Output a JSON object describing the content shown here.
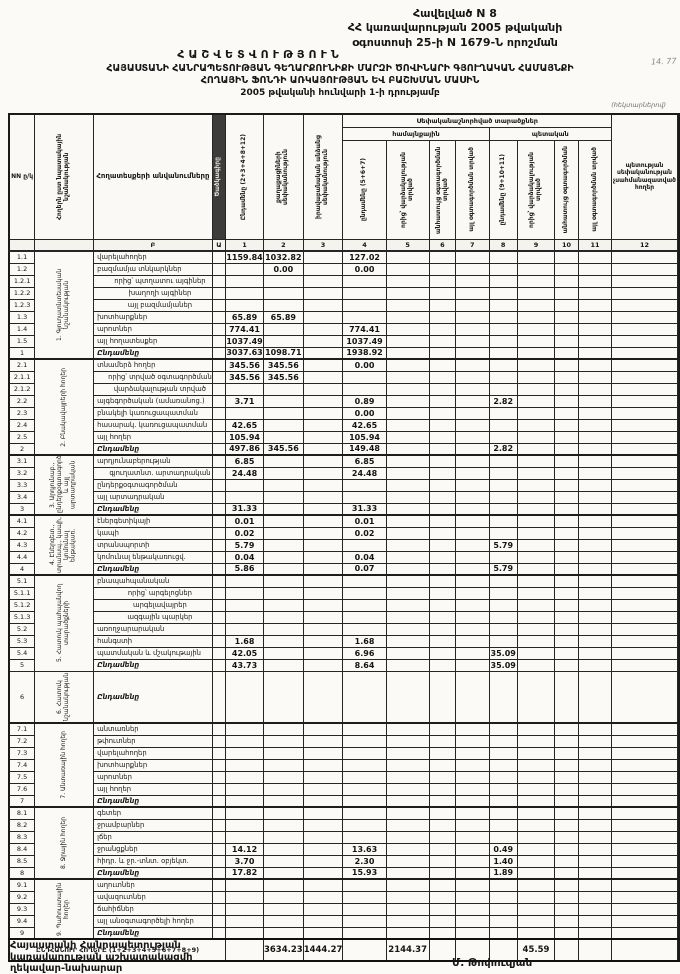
{
  "annex": {
    "line1": "Հավելված N 8",
    "line2": "ՀՀ կառավարության 2005 թվականի",
    "line3": "օգոստոսի 25-ի N 1679-Ն որոշման"
  },
  "title": {
    "heading": "ՀԱՇՎԵՏՎՈՒԹՅՈՒՆ",
    "line1": "ՀԱՅԱՍՏԱՆԻ ՀԱՆՐԱՊԵՏՈՒԹՅԱՆ ԳԵՂԱՐՔՈՒՆԻՔԻ ՄԱՐԶԻ ԾՈՎԻՆԱՐԻ ԳՅՈՒՂԱԿԱՆ ՀԱՄԱՅՆՔԻ",
    "line2": "ՀՈՂԱՅԻՆ ՖՈՆԴԻ ԱՌԿԱՅՈՒԹՅԱՆ ԵՎ ԲԱՇԽՄԱՆ ՄԱՍԻՆ",
    "line3": "2005 թվականի հունվարի 1-ի դրությամբ",
    "units": "(հեկտարներով)",
    "handwriting": "14. 77"
  },
  "table": {
    "header": {
      "nn": "NN ը/կ",
      "category": "Հողերն ըստ նպատակային նշանակության",
      "name": "Հողատեսքերի անվանումները",
      "code": "Ծածկագիրը",
      "col1": "Ընդամենը (2+3+4+8+12)",
      "col2": "քաղաքացիների սեփականություն",
      "col3": "իրավաբանական անձանց սեփականություն",
      "group_top": "Սեփականաշնորհված տարածքներ",
      "group_community": "համայնքային",
      "group_state": "պետական",
      "col4": "ընդամենը (5+6+7)",
      "col5": "որից՝ վարձակալության տրված",
      "col6": "անհատույց օգտագործման տրված",
      "col7": "այլ օգտագործման տրված",
      "col8": "ընդամենը (9+10+11)",
      "col9": "որից՝ վարձակալության տրված",
      "col10": "անհատույց օգտագործման",
      "col11": "այլ օգտագործման տրված",
      "col12": "պետության սեփականության չսահմանազատված հողեր",
      "num_row": [
        "",
        "",
        "Բ",
        "Ա",
        "1",
        "2",
        "3",
        "4",
        "5",
        "6",
        "7",
        "8",
        "9",
        "10",
        "11",
        "12"
      ]
    },
    "sections": [
      {
        "num": "1",
        "title": "Գյուղատնտեսական նշանակության",
        "rows": [
          {
            "no": "1.1",
            "label": "վարելահողեր",
            "v": {
              "1": "1159.84",
              "2": "1032.82",
              "4": "127.02"
            }
          },
          {
            "no": "1.2",
            "label": "բազմամյա տնկարկներ",
            "v": {
              "2": "0.00",
              "4": "0.00"
            }
          },
          {
            "no": "1.2.1",
            "label": "որից՝ պտղատու այգիներ",
            "indent": true,
            "v": {}
          },
          {
            "no": "1.2.2",
            "label": "խաղողի այգիներ",
            "indent": true,
            "v": {}
          },
          {
            "no": "1.2.3",
            "label": "այլ բազմամյաներ",
            "indent": true,
            "v": {}
          },
          {
            "no": "1.3",
            "label": "խոտհարքներ",
            "v": {
              "1": "65.89",
              "2": "65.89"
            }
          },
          {
            "no": "1.4",
            "label": "արոտներ",
            "v": {
              "1": "774.41",
              "4": "774.41"
            }
          },
          {
            "no": "1.5",
            "label": "այլ հողատեսքեր",
            "v": {
              "1": "1037.49",
              "4": "1037.49"
            }
          },
          {
            "no": "1",
            "label": "Ընդամենը",
            "total": true,
            "v": {
              "1": "3037.63",
              "2": "1098.71",
              "4": "1938.92"
            }
          }
        ]
      },
      {
        "num": "2",
        "title": "Բնակավայրերի հողեր",
        "rows": [
          {
            "no": "2.1",
            "label": "տնամերձ հողեր",
            "v": {
              "1": "345.56",
              "2": "345.56",
              "4": "0.00"
            }
          },
          {
            "no": "2.1.1",
            "label": "որից՝ տրված օգտագործման",
            "indent": true,
            "v": {
              "1": "345.56",
              "2": "345.56"
            }
          },
          {
            "no": "2.1.2",
            "label": "վարձակալության տրված",
            "indent": true,
            "v": {}
          },
          {
            "no": "2.2",
            "label": "այգեգործական (ամառանոց.)",
            "v": {
              "1": "3.71",
              "4": "0.89",
              "8": "2.82"
            }
          },
          {
            "no": "2.3",
            "label": "բնակելի կառուցապատման",
            "v": {
              "4": "0.00"
            }
          },
          {
            "no": "2.4",
            "label": "հասարակ. կառուցապատման",
            "v": {
              "1": "42.65",
              "4": "42.65"
            }
          },
          {
            "no": "2.5",
            "label": "այլ հողեր",
            "v": {
              "1": "105.94",
              "4": "105.94"
            }
          },
          {
            "no": "2",
            "label": "Ընդամենը",
            "total": true,
            "v": {
              "1": "497.86",
              "2": "345.56",
              "4": "149.48",
              "8": "2.82"
            }
          }
        ]
      },
      {
        "num": "3",
        "title": "Արդյունաբ., ընդերքօգտագործ. և այլ արտադրական",
        "rows": [
          {
            "no": "3.1",
            "label": "արդյունաբերության",
            "v": {
              "1": "6.85",
              "4": "6.85"
            }
          },
          {
            "no": "3.2",
            "label": "գյուղատնտ. արտադրական",
            "indent": true,
            "v": {
              "1": "24.48",
              "4": "24.48"
            }
          },
          {
            "no": "3.3",
            "label": "ընդերքօգտագործման",
            "v": {}
          },
          {
            "no": "3.4",
            "label": "այլ արտադրական",
            "v": {}
          },
          {
            "no": "3",
            "label": "Ընդամենը",
            "total": true,
            "v": {
              "1": "31.33",
              "4": "31.33"
            }
          }
        ]
      },
      {
        "num": "4",
        "title": "Էներգետ., տրանսպ., կապի, կոմունալ ենթակառ.",
        "rows": [
          {
            "no": "4.1",
            "label": "էներգետիկայի",
            "v": {
              "1": "0.01",
              "4": "0.01"
            }
          },
          {
            "no": "4.2",
            "label": "կապի",
            "v": {
              "1": "0.02",
              "4": "0.02"
            }
          },
          {
            "no": "4.3",
            "label": "տրանսպորտի",
            "v": {
              "1": "5.79",
              "8": "5.79"
            }
          },
          {
            "no": "4.4",
            "label": "կոմունալ ենթակառուցվ.",
            "v": {
              "1": "0.04",
              "4": "0.04"
            }
          },
          {
            "no": "4",
            "label": "Ընդամենը",
            "total": true,
            "v": {
              "1": "5.86",
              "4": "0.07",
              "8": "5.79"
            }
          }
        ]
      },
      {
        "num": "5",
        "title": "Հատուկ պահպանվող տարածքների",
        "rows": [
          {
            "no": "5.1",
            "label": "բնապահպանական",
            "v": {}
          },
          {
            "no": "5.1.1",
            "label": "որից՝ արգելոցներ",
            "indent": true,
            "v": {}
          },
          {
            "no": "5.1.2",
            "label": "արգելավայրեր",
            "indent": true,
            "v": {}
          },
          {
            "no": "5.1.3",
            "label": "ազգային պարկեր",
            "indent": true,
            "v": {}
          },
          {
            "no": "5.2",
            "label": "առողջարարական",
            "v": {}
          },
          {
            "no": "5.3",
            "label": "հանգստի",
            "v": {
              "1": "1.68",
              "4": "1.68"
            }
          },
          {
            "no": "5.4",
            "label": "պատմական և մշակութային",
            "v": {
              "1": "42.05",
              "4": "6.96",
              "8": "35.09"
            }
          },
          {
            "no": "5",
            "label": "Ընդամենը",
            "total": true,
            "v": {
              "1": "43.73",
              "4": "8.64",
              "8": "35.09"
            }
          }
        ]
      },
      {
        "num": "6",
        "title": "Հատուկ նշանակության",
        "tall": true,
        "rows": [
          {
            "no": "6",
            "label": "Ընդամենը",
            "total": true,
            "v": {}
          }
        ]
      },
      {
        "num": "7",
        "title": "Անտառային հողեր",
        "rows": [
          {
            "no": "7.1",
            "label": "անտառներ",
            "v": {}
          },
          {
            "no": "7.2",
            "label": "թփուտներ",
            "v": {}
          },
          {
            "no": "7.3",
            "label": "վարելահողեր",
            "v": {}
          },
          {
            "no": "7.4",
            "label": "խոտհարքներ",
            "v": {}
          },
          {
            "no": "7.5",
            "label": "արոտներ",
            "v": {}
          },
          {
            "no": "7.6",
            "label": "այլ հողեր",
            "v": {}
          },
          {
            "no": "7",
            "label": "Ընդամենը",
            "total": true,
            "v": {}
          }
        ]
      },
      {
        "num": "8",
        "title": "Ջրային հողեր",
        "rows": [
          {
            "no": "8.1",
            "label": "գետեր",
            "v": {}
          },
          {
            "no": "8.2",
            "label": "ջրամբարներ",
            "v": {}
          },
          {
            "no": "8.3",
            "label": "լճեր",
            "v": {}
          },
          {
            "no": "8.4",
            "label": "ջրանցքներ",
            "v": {
              "1": "14.12",
              "4": "13.63",
              "8": "0.49"
            }
          },
          {
            "no": "8.5",
            "label": "հիդր. և ջր.-տնտ. օբյեկտ.",
            "v": {
              "1": "3.70",
              "4": "2.30",
              "8": "1.40"
            }
          },
          {
            "no": "8",
            "label": "Ընդամենը",
            "total": true,
            "v": {
              "1": "17.82",
              "4": "15.93",
              "8": "1.89"
            }
          }
        ]
      },
      {
        "num": "9",
        "title": "Պահուստային հողեր",
        "rows": [
          {
            "no": "9.1",
            "label": "աղուտներ",
            "v": {}
          },
          {
            "no": "9.2",
            "label": "ավազուտներ",
            "v": {}
          },
          {
            "no": "9.3",
            "label": "ճահիճներ",
            "v": {}
          },
          {
            "no": "9.4",
            "label": "այլ անօգտագործելի հողեր",
            "v": {}
          },
          {
            "no": "9",
            "label": "Ընդամենը",
            "total": true,
            "v": {}
          }
        ]
      }
    ],
    "grand_total": {
      "label": "ԸՆԴՀԱՆՈՒՐ ՀՈՂԵՐԸ (1+2+3+4+5+6+7+8+9)",
      "v": {
        "1": "3634.23",
        "2": "1444.27",
        "4": "2144.37",
        "8": "45.59"
      }
    }
  },
  "footer": {
    "line1": "Հայաստանի Հանրապետության",
    "line2": "կառավարության աշխատակազմի",
    "line3": "ղեկավար-նախարար",
    "signature": "Մ. Թոփուզյան"
  }
}
